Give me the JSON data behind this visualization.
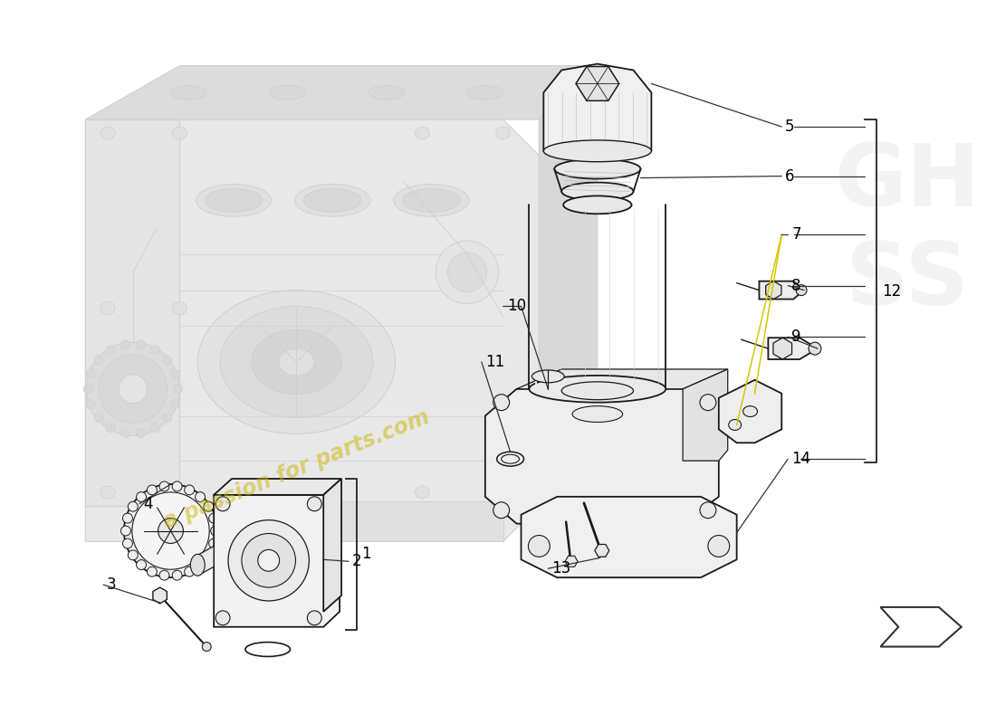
{
  "bg_color": "#ffffff",
  "ghost_color": "#d0d0d0",
  "ghost_fill": "#e8e8e8",
  "ghost_alpha": 0.55,
  "part_color": "#1a1a1a",
  "part_fill": "#f0f0f0",
  "part_fill2": "#e0e0e0",
  "watermark_text": "a passion for parts.com",
  "watermark_color": "#c8b400",
  "watermark_alpha": 0.5,
  "leader_color": "#333333",
  "leader_lw": 0.9,
  "part_lw": 1.3,
  "yellow_line_color": "#d4c800",
  "bracket_color": "#222222",
  "bracket_lw": 1.3,
  "label_fs": 12,
  "arrow_color": "#333333"
}
